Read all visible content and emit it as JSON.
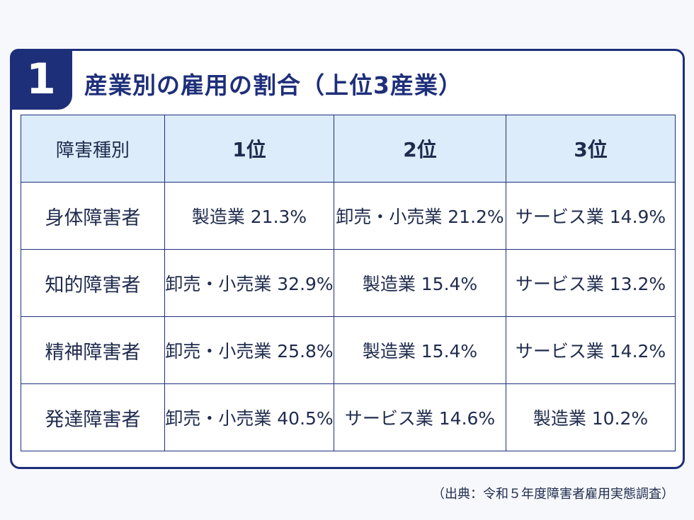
{
  "badge_number": "1",
  "title": "産業別の雇用の割合（上位3産業）",
  "table": {
    "headers": [
      "障害種別",
      "1位",
      "2位",
      "3位"
    ],
    "rows": [
      {
        "type": "身体障害者",
        "rank1": "製造業 21.3%",
        "rank2": "卸売・小売業 21.2%",
        "rank3": "サービス業 14.9%"
      },
      {
        "type": "知的障害者",
        "rank1": "卸売・小売業 32.9%",
        "rank2": "製造業 15.4%",
        "rank3": "サービス業 13.2%"
      },
      {
        "type": "精神障害者",
        "rank1": "卸売・小売業 25.8%",
        "rank2": "製造業 15.4%",
        "rank3": "サービス業 14.2%"
      },
      {
        "type": "発達障害者",
        "rank1": "卸売・小売業 40.5%",
        "rank2": "サービス業 14.6%",
        "rank3": "製造業 10.2%"
      }
    ]
  },
  "source": "（出典：令和５年度障害者雇用実態調査）",
  "colors": {
    "accent": "#1e2f7a",
    "header_fill": "#dcecfb",
    "text": "#1f2b4d"
  }
}
